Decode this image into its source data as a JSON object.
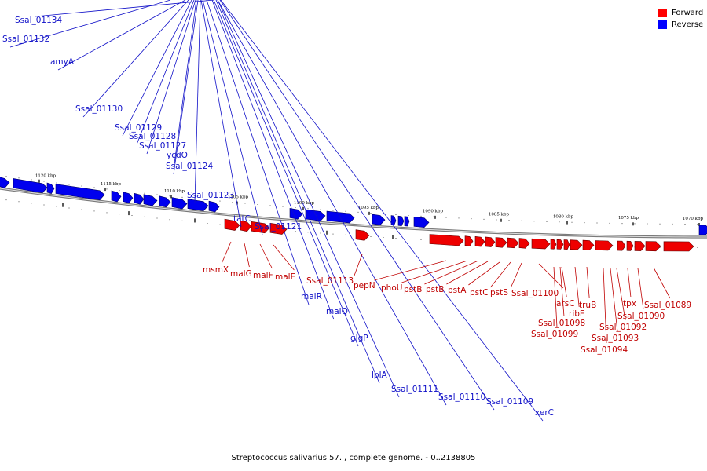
{
  "legend": {
    "forward": {
      "label": "Forward",
      "color": "#ff0000"
    },
    "reverse": {
      "label": "Reverse",
      "color": "#0000ff"
    }
  },
  "footer": "Streptococcus salivarius 57.I, complete genome. - 0..2138805",
  "axis": {
    "ticks": [
      {
        "kbp": 1120,
        "label": "1120 kbp"
      },
      {
        "kbp": 1115,
        "label": "1115 kbp"
      },
      {
        "kbp": 1110,
        "label": "1110 kbp"
      },
      {
        "kbp": 1105,
        "label": "1105 kbp"
      },
      {
        "kbp": 1100,
        "label": "1100 kbp"
      },
      {
        "kbp": 1095,
        "label": "1095 kbp"
      },
      {
        "kbp": 1090,
        "label": "1090 kbp"
      },
      {
        "kbp": 1085,
        "label": "1085 kbp"
      },
      {
        "kbp": 1080,
        "label": "1080 kbp"
      },
      {
        "kbp": 1075,
        "label": "1075 kbp"
      },
      {
        "kbp": 1070,
        "label": "1070 kbp"
      }
    ]
  },
  "genes_reverse": [
    "Ssal_01132",
    "amyA",
    "Ssal_01130",
    "Ssal_01129",
    "Ssal_01128",
    "Ssal_01127",
    "ycdO",
    "Ssal_01124",
    "Ssal_01123",
    "tatC",
    "Ssal_01121",
    "malR",
    "malQ",
    "glgP",
    "lplA",
    "Ssal_01111",
    "Ssal_01110",
    "Ssal_01109",
    "xerC",
    "Ssal_01134"
  ],
  "genes_forward": [
    "msmX",
    "malG",
    "malF",
    "malE",
    "Ssal_01113",
    "pepN",
    "phoU",
    "pstB",
    "pstB",
    "pstA",
    "pstC",
    "pstS",
    "Ssal_01100",
    "arsC",
    "ribF",
    "truB",
    "tpx",
    "Ssal_01089",
    "Ssal_01090",
    "Ssal_01092",
    "Ssal_01093",
    "Ssal_01094",
    "Ssal_01098",
    "Ssal_01099"
  ]
}
